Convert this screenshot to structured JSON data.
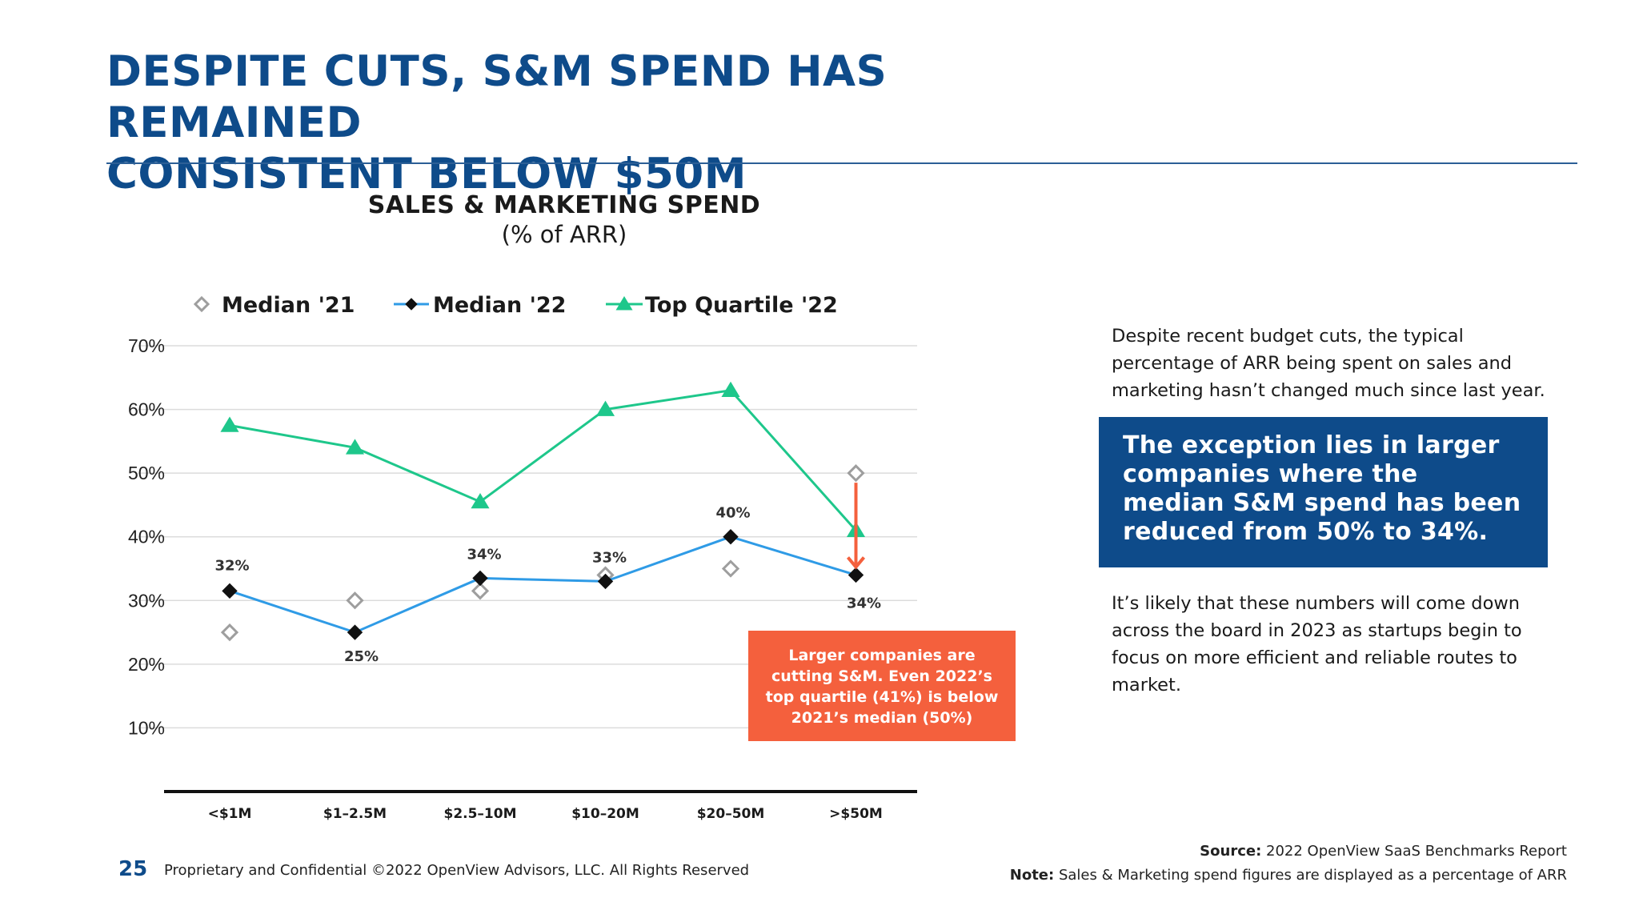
{
  "slide": {
    "title_lines": [
      "DESPITE CUTS, S&M SPEND HAS REMAINED",
      "CONSISTENT BELOW $50M"
    ],
    "page_number": "25",
    "footer": "Proprietary and Confidential ©2022 OpenView Advisors, LLC. All Rights Reserved",
    "source_label": "Source:",
    "source_text": "2022 OpenView SaaS Benchmarks Report",
    "note_label": "Note:",
    "note_text": "Sales & Marketing spend figures are displayed as a percentage of ARR"
  },
  "callout": {
    "text": "Larger companies are cutting S&M. Even 2022’s top quartile (41%) is below 2021’s median (50%)"
  },
  "right_panel": {
    "paragraph1": "Despite recent budget cuts, the typical percentage of ARR being spent on sales and marketing hasn’t changed much since last year.",
    "highlight": "The exception lies in larger companies where the median S&M spend has been reduced from 50% to 34%.",
    "paragraph2": "It’s likely that these numbers will come down across the board in 2023 as startups begin to focus on more efficient and reliable routes to market."
  },
  "chart_data": {
    "type": "line",
    "title": "SALES & MARKETING SPEND",
    "subtitle": "(% of ARR)",
    "categories": [
      "<$1M",
      "$1–2.5M",
      "$2.5–10M",
      "$10–20M",
      "$20–50M",
      ">$50M"
    ],
    "yticks": [
      "70%",
      "60%",
      "50%",
      "40%",
      "30%",
      "20%",
      "10%"
    ],
    "ylim": [
      0,
      70
    ],
    "grid": true,
    "legend_position": "top",
    "series": [
      {
        "name": "Median '21",
        "values": [
          25,
          30,
          31.5,
          34,
          35,
          50
        ],
        "color": "#9e9e9e",
        "marker": "hollow-diamond",
        "line": false,
        "labels": []
      },
      {
        "name": "Median '22",
        "values": [
          31.5,
          25,
          33.5,
          33,
          40,
          34
        ],
        "color": "#2f9be6",
        "marker": "diamond",
        "line": true,
        "labels": [
          "32%",
          "25%",
          "34%",
          "33%",
          "40%",
          "34%"
        ]
      },
      {
        "name": "Top Quartile '22",
        "values": [
          57.5,
          54,
          45.5,
          60,
          63,
          41
        ],
        "color": "#1ec78b",
        "marker": "triangle",
        "line": true,
        "labels": []
      }
    ],
    "annotation_arrow": {
      "from_value": 50,
      "to_value": 34,
      "category": ">$50M",
      "color": "#f4603d"
    }
  }
}
